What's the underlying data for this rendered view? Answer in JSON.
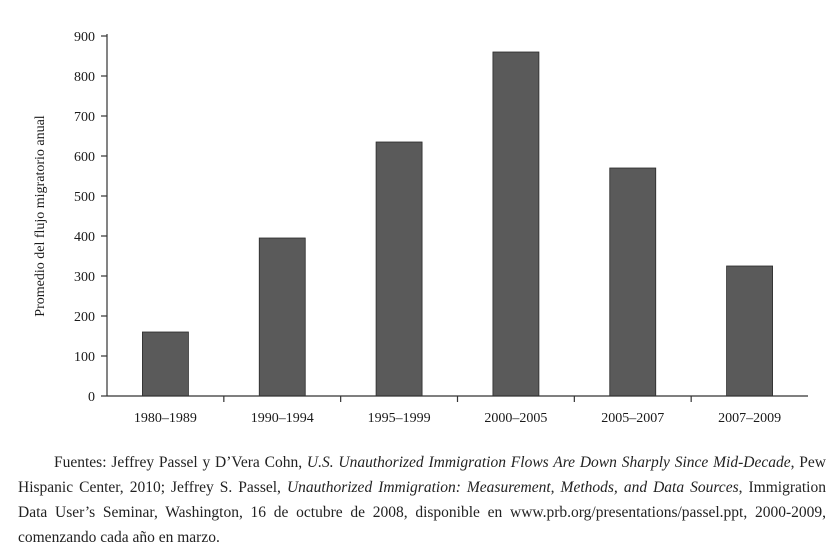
{
  "chart_data": {
    "type": "bar",
    "title": "",
    "xlabel": "",
    "ylabel": "Promedio del flujo migratorio anual",
    "categories": [
      "1980–1989",
      "1990–1994",
      "1995–1999",
      "2000–2005",
      "2005–2007",
      "2007–2009"
    ],
    "values": [
      160,
      395,
      635,
      860,
      570,
      325
    ],
    "ylim": [
      0,
      900
    ],
    "yticks": [
      0,
      100,
      200,
      300,
      400,
      500,
      600,
      700,
      800,
      900
    ],
    "grid": false,
    "bar_color": "#5a5a5a"
  },
  "source": {
    "part1": "Fuentes: Jeffrey Passel y D’Vera Cohn, ",
    "title1": "U.S. Unauthorized Immigration Flows Are Down Sharply Since Mid-Decade",
    "part2": ", Pew Hispanic Center, 2010; Jeffrey S. Passel, ",
    "title2": "Unauthorized Immigration: Measurement, Methods, and Data Sources",
    "part3": ", Immigration Data User’s Seminar, Washington, 16 de octubre de 2008, disponible en www.prb.org/presentations/passel.ppt, 2000-2009, comenzando cada año en marzo."
  }
}
